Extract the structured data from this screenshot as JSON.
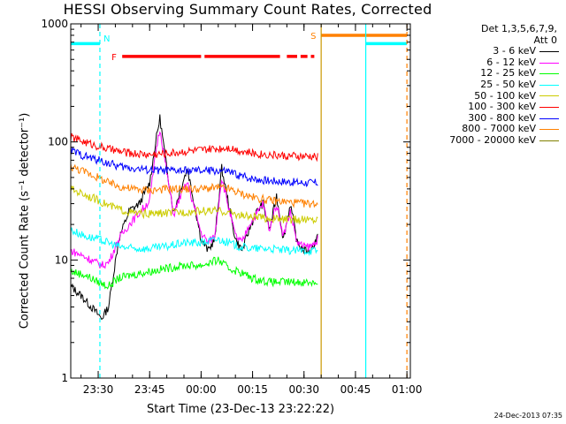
{
  "header": {
    "title": "HESSI Observing Summary Count Rates, Corrected",
    "ylabel": "Corrected Count Rate (s⁻¹ detector⁻¹)",
    "xlabel": "Start Time (23-Dec-13 23:22:22)",
    "footer": "24-Dec-2013 07:35"
  },
  "legend": {
    "header_line1": "Det 1,3,5,6,7,9,",
    "header_line2": "Att 0",
    "items": [
      {
        "label": "3 - 6 keV",
        "color": "#000000"
      },
      {
        "label": "6 - 12 keV",
        "color": "#ff00ff"
      },
      {
        "label": "12 - 25 keV",
        "color": "#00ff00"
      },
      {
        "label": "25 - 50 keV",
        "color": "#00ffff"
      },
      {
        "label": "50 - 100 keV",
        "color": "#cccc00"
      },
      {
        "label": "100 - 300 keV",
        "color": "#ff0000"
      },
      {
        "label": "300 - 800 keV",
        "color": "#0000ff"
      },
      {
        "label": "800 - 7000 keV",
        "color": "#ff8000"
      },
      {
        "label": "7000 - 20000 keV",
        "color": "#808000"
      }
    ]
  },
  "chart_data": {
    "type": "line",
    "title": "HESSI Observing Summary Count Rates, Corrected",
    "xlabel": "Start Time (23-Dec-13 23:22:22)",
    "ylabel": "Corrected Count Rate (s⁻¹ detector⁻¹)",
    "yscale": "log",
    "ylim": [
      1,
      1000
    ],
    "yticks": [
      1,
      10,
      100,
      1000
    ],
    "ytick_labels": [
      "1",
      "10",
      "100",
      "1000"
    ],
    "xlim": [
      "23:22",
      "01:01"
    ],
    "xticks": [
      "23:30",
      "23:45",
      "00:00",
      "00:15",
      "00:30",
      "00:45",
      "01:00"
    ],
    "legend_position": "right",
    "series": [
      {
        "name": "3 - 6 keV",
        "color": "#000000",
        "x": [
          "23:22",
          "23:25",
          "23:28",
          "23:31",
          "23:33",
          "23:36",
          "23:39",
          "23:42",
          "23:45",
          "23:47",
          "23:48",
          "23:50",
          "23:52",
          "23:54",
          "23:56",
          "23:58",
          "24:00",
          "24:02",
          "24:04",
          "24:06",
          "24:08",
          "24:10",
          "24:12",
          "24:14",
          "24:16",
          "24:18",
          "24:20",
          "24:22",
          "24:24",
          "24:26",
          "24:28",
          "24:30",
          "24:32",
          "24:34"
        ],
        "y": [
          6,
          5,
          4,
          3.2,
          4,
          15,
          26,
          30,
          45,
          110,
          160,
          60,
          25,
          40,
          60,
          30,
          15,
          12,
          15,
          60,
          30,
          15,
          12,
          18,
          25,
          30,
          18,
          35,
          15,
          30,
          14,
          12,
          12,
          16
        ]
      },
      {
        "name": "6 - 12 keV",
        "color": "#ff00ff",
        "x": [
          "23:22",
          "23:25",
          "23:28",
          "23:31",
          "23:33",
          "23:36",
          "23:39",
          "23:42",
          "23:45",
          "23:47",
          "23:48",
          "23:50",
          "23:52",
          "23:54",
          "23:56",
          "23:58",
          "24:00",
          "24:02",
          "24:04",
          "24:06",
          "24:08",
          "24:10",
          "24:12",
          "24:14",
          "24:16",
          "24:18",
          "24:20",
          "24:22",
          "24:24",
          "24:26",
          "24:28",
          "24:30",
          "24:32",
          "24:34"
        ],
        "y": [
          12,
          11,
          10,
          9,
          9.5,
          15,
          20,
          25,
          32,
          90,
          130,
          55,
          24,
          35,
          45,
          28,
          17,
          14,
          16,
          50,
          28,
          16,
          14,
          20,
          24,
          30,
          18,
          30,
          16,
          26,
          14,
          13,
          13,
          15
        ]
      },
      {
        "name": "12 - 25 keV",
        "color": "#00ff00",
        "x": [
          "23:22",
          "23:26",
          "23:30",
          "23:33",
          "23:36",
          "23:40",
          "23:45",
          "23:50",
          "23:55",
          "24:00",
          "24:05",
          "24:08",
          "24:11",
          "24:15",
          "24:20",
          "24:25",
          "24:30",
          "24:34"
        ],
        "y": [
          8,
          7.5,
          6.5,
          6,
          7,
          7.5,
          8,
          8.5,
          9,
          9,
          10,
          8.5,
          8,
          7,
          6.5,
          6.5,
          6.5,
          6.5
        ]
      },
      {
        "name": "25 - 50 keV",
        "color": "#00ffff",
        "x": [
          "23:22",
          "23:26",
          "23:30",
          "23:33",
          "23:36",
          "23:40",
          "23:45",
          "23:50",
          "23:55",
          "24:00",
          "24:05",
          "24:08",
          "24:11",
          "24:15",
          "24:20",
          "24:25",
          "24:30",
          "24:34"
        ],
        "y": [
          18,
          16,
          15,
          14,
          13,
          12.5,
          12.5,
          13,
          14,
          14,
          15,
          14,
          13,
          12.5,
          12.5,
          12,
          12,
          12
        ]
      },
      {
        "name": "50 - 100 keV",
        "color": "#cccc00",
        "x": [
          "23:22",
          "23:26",
          "23:30",
          "23:33",
          "23:36",
          "23:40",
          "23:45",
          "23:50",
          "23:55",
          "24:00",
          "24:05",
          "24:08",
          "24:11",
          "24:15",
          "24:20",
          "24:25",
          "24:30",
          "24:34"
        ],
        "y": [
          40,
          36,
          32,
          29,
          27,
          25,
          24.5,
          25,
          25.5,
          26,
          26,
          25.5,
          24,
          23,
          22.5,
          22,
          22,
          22
        ]
      },
      {
        "name": "100 - 300 keV",
        "color": "#ff0000",
        "x": [
          "23:22",
          "23:26",
          "23:30",
          "23:33",
          "23:36",
          "23:40",
          "23:45",
          "23:50",
          "23:55",
          "24:00",
          "24:05",
          "24:08",
          "24:11",
          "24:15",
          "24:20",
          "24:25",
          "24:30",
          "24:34"
        ],
        "y": [
          110,
          100,
          92,
          87,
          83,
          80,
          78,
          80,
          83,
          85,
          88,
          90,
          85,
          80,
          78,
          76,
          75,
          75
        ]
      },
      {
        "name": "300 - 800 keV",
        "color": "#0000ff",
        "x": [
          "23:22",
          "23:26",
          "23:30",
          "23:33",
          "23:36",
          "23:40",
          "23:45",
          "23:50",
          "23:55",
          "24:00",
          "24:05",
          "24:08",
          "24:11",
          "24:15",
          "24:20",
          "24:25",
          "24:30",
          "24:34"
        ],
        "y": [
          85,
          76,
          70,
          66,
          62,
          60,
          58,
          57,
          57,
          57,
          57,
          56,
          52,
          49,
          47,
          46,
          45,
          45
        ]
      },
      {
        "name": "800 - 7000 keV",
        "color": "#ff8000",
        "x": [
          "23:22",
          "23:26",
          "23:30",
          "23:33",
          "23:36",
          "23:40",
          "23:45",
          "23:50",
          "23:55",
          "24:00",
          "24:05",
          "24:08",
          "24:11",
          "24:15",
          "24:20",
          "24:25",
          "24:30",
          "24:34"
        ],
        "y": [
          62,
          56,
          50,
          45,
          42,
          40,
          39,
          40,
          40,
          40,
          41,
          40,
          37,
          34,
          32,
          31,
          30,
          30
        ]
      }
    ],
    "flag_bars": [
      {
        "label": "",
        "color": "#00ffff",
        "value": 680,
        "segments": [
          [
            "23:22",
            "23:30:30"
          ],
          [
            "00:48",
            "01:00"
          ]
        ]
      },
      {
        "label": "S",
        "color": "#ff8000",
        "value": 800,
        "segments": [
          [
            "00:35",
            "01:00"
          ]
        ]
      },
      {
        "label": "F",
        "color": "#ff0000",
        "value": 530,
        "segments": [
          [
            "23:37",
            "24:00"
          ],
          [
            "24:01",
            "24:23"
          ],
          [
            "24:25",
            "24:28"
          ],
          [
            "24:29",
            "24:31"
          ],
          [
            "24:32",
            "24:33"
          ]
        ]
      }
    ],
    "markers": [
      {
        "label": "N",
        "color": "#00ffff",
        "x": "23:30:30",
        "style": "dashed"
      },
      {
        "label": "",
        "color": "#ff8000",
        "x": "01:00",
        "style": "dashed"
      },
      {
        "label": "",
        "color": "#00ffff",
        "x": "00:48",
        "style": "solid"
      },
      {
        "label": "",
        "color": "#cc9900",
        "x": "00:35",
        "style": "solid"
      }
    ]
  }
}
